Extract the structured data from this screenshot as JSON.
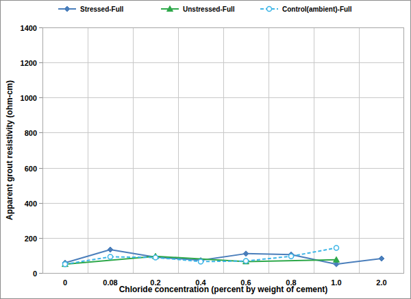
{
  "chart_data": {
    "type": "line",
    "x_label": "Chloride concentration (percent by weight of cement)",
    "y_label": "Apparent grout resistivity (ohm-cm)",
    "categories": [
      "0",
      "0.08",
      "0.2",
      "0.4",
      "0.6",
      "0.8",
      "1.0",
      "2.0"
    ],
    "series": [
      {
        "name": "Stressed-Full",
        "color": "#4a7ebb",
        "marker": "diamond",
        "line_style": "solid",
        "values": [
          58,
          133,
          90,
          72,
          110,
          105,
          50,
          82
        ]
      },
      {
        "name": "Unstressed-Full",
        "color": "#2ea84a",
        "marker": "triangle",
        "line_style": "solid",
        "values": [
          50,
          null,
          95,
          null,
          65,
          null,
          75,
          null
        ]
      },
      {
        "name": "Control(ambient)-Full",
        "color": "#3db5e6",
        "marker": "open-circle",
        "line_style": "dashed",
        "values": [
          50,
          92,
          88,
          65,
          68,
          95,
          143,
          null
        ]
      }
    ],
    "ylim": [
      0,
      1400
    ],
    "yticks": [
      0,
      200,
      400,
      600,
      800,
      1000,
      1200,
      1400
    ],
    "grid": true,
    "legend": "top"
  }
}
